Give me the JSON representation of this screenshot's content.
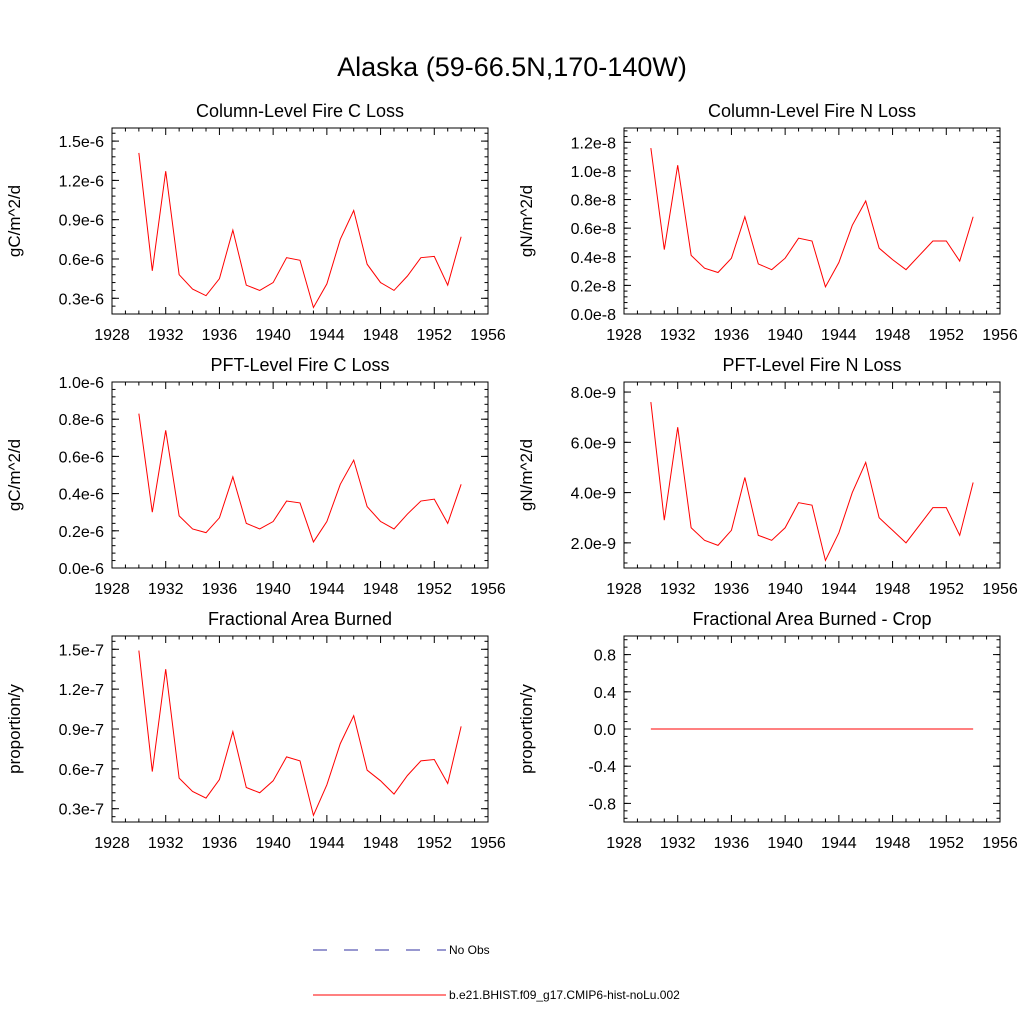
{
  "page": {
    "title": "Alaska (59-66.5N,170-140W)"
  },
  "legend": [
    {
      "label": "No Obs",
      "color": "#3030a0",
      "style": "dashed"
    },
    {
      "label": "b.e21.BHIST.f09_g17.CMIP6-hist-noLu.002",
      "color": "#ff0000",
      "style": "solid"
    }
  ],
  "chart_data": [
    {
      "type": "line",
      "title": "Column-Level Fire C Loss",
      "ylabel": "gC/m^2/d",
      "xlim": [
        1928,
        1956
      ],
      "ylim": [
        1.8e-07,
        1.6e-06
      ],
      "xticks": [
        1928,
        1932,
        1936,
        1940,
        1944,
        1948,
        1952,
        1956
      ],
      "xtick_labels": [
        "1928",
        "1932",
        "1936",
        "1940",
        "1944",
        "1948",
        "1952",
        "1956"
      ],
      "yticks": [
        3e-07,
        6e-07,
        9e-07,
        1.2e-06,
        1.5e-06
      ],
      "ytick_labels": [
        "0.3e-6",
        "0.6e-6",
        "0.9e-6",
        "1.2e-6",
        "1.5e-6"
      ],
      "yminor": 6e-08,
      "x": [
        1930,
        1931,
        1932,
        1933,
        1934,
        1935,
        1936,
        1937,
        1938,
        1939,
        1940,
        1941,
        1942,
        1943,
        1944,
        1945,
        1946,
        1947,
        1948,
        1949,
        1950,
        1951,
        1952,
        1953,
        1954
      ],
      "series": [
        {
          "name": "b.e21.BHIST.f09_g17.CMIP6-hist-noLu.002",
          "color": "#ff0000",
          "values": [
            1.41e-06,
            5.1e-07,
            1.27e-06,
            4.8e-07,
            3.7e-07,
            3.2e-07,
            4.5e-07,
            8.2e-07,
            4e-07,
            3.6e-07,
            4.2e-07,
            6.1e-07,
            5.9e-07,
            2.3e-07,
            4.1e-07,
            7.5e-07,
            9.7e-07,
            5.6e-07,
            4.2e-07,
            3.6e-07,
            4.7e-07,
            6.1e-07,
            6.2e-07,
            4e-07,
            7.7e-07
          ]
        }
      ]
    },
    {
      "type": "line",
      "title": "Column-Level Fire N Loss",
      "ylabel": "gN/m^2/d",
      "xlim": [
        1928,
        1956
      ],
      "ylim": [
        0.0,
        1.3e-08
      ],
      "xticks": [
        1928,
        1932,
        1936,
        1940,
        1944,
        1948,
        1952,
        1956
      ],
      "xtick_labels": [
        "1928",
        "1932",
        "1936",
        "1940",
        "1944",
        "1948",
        "1952",
        "1956"
      ],
      "yticks": [
        0.0,
        2e-09,
        4e-09,
        6e-09,
        8e-09,
        1e-08,
        1.2e-08
      ],
      "ytick_labels": [
        "0.0e-8",
        "0.2e-8",
        "0.4e-8",
        "0.6e-8",
        "0.8e-8",
        "1.0e-8",
        "1.2e-8"
      ],
      "yminor": 4e-10,
      "x": [
        1930,
        1931,
        1932,
        1933,
        1934,
        1935,
        1936,
        1937,
        1938,
        1939,
        1940,
        1941,
        1942,
        1943,
        1944,
        1945,
        1946,
        1947,
        1948,
        1949,
        1950,
        1951,
        1952,
        1953,
        1954
      ],
      "series": [
        {
          "name": "b.e21.BHIST.f09_g17.CMIP6-hist-noLu.002",
          "color": "#ff0000",
          "values": [
            1.16e-08,
            4.5e-09,
            1.04e-08,
            4.1e-09,
            3.2e-09,
            2.9e-09,
            3.9e-09,
            6.8e-09,
            3.5e-09,
            3.1e-09,
            3.9e-09,
            5.3e-09,
            5.1e-09,
            1.9e-09,
            3.6e-09,
            6.2e-09,
            7.9e-09,
            4.6e-09,
            3.8e-09,
            3.1e-09,
            4.1e-09,
            5.1e-09,
            5.1e-09,
            3.7e-09,
            6.8e-09
          ]
        }
      ]
    },
    {
      "type": "line",
      "title": "PFT-Level Fire C Loss",
      "ylabel": "gC/m^2/d",
      "xlim": [
        1928,
        1956
      ],
      "ylim": [
        0.0,
        1e-06
      ],
      "xticks": [
        1928,
        1932,
        1936,
        1940,
        1944,
        1948,
        1952,
        1956
      ],
      "xtick_labels": [
        "1928",
        "1932",
        "1936",
        "1940",
        "1944",
        "1948",
        "1952",
        "1956"
      ],
      "yticks": [
        0.0,
        2e-07,
        4e-07,
        6e-07,
        8e-07,
        1e-06
      ],
      "ytick_labels": [
        "0.0e-6",
        "0.2e-6",
        "0.4e-6",
        "0.6e-6",
        "0.8e-6",
        "1.0e-6"
      ],
      "yminor": 4e-08,
      "x": [
        1930,
        1931,
        1932,
        1933,
        1934,
        1935,
        1936,
        1937,
        1938,
        1939,
        1940,
        1941,
        1942,
        1943,
        1944,
        1945,
        1946,
        1947,
        1948,
        1949,
        1950,
        1951,
        1952,
        1953,
        1954
      ],
      "series": [
        {
          "name": "b.e21.BHIST.f09_g17.CMIP6-hist-noLu.002",
          "color": "#ff0000",
          "values": [
            8.3e-07,
            3e-07,
            7.4e-07,
            2.8e-07,
            2.1e-07,
            1.9e-07,
            2.7e-07,
            4.9e-07,
            2.4e-07,
            2.1e-07,
            2.5e-07,
            3.6e-07,
            3.5e-07,
            1.4e-07,
            2.5e-07,
            4.5e-07,
            5.8e-07,
            3.3e-07,
            2.5e-07,
            2.1e-07,
            2.9e-07,
            3.6e-07,
            3.7e-07,
            2.4e-07,
            4.5e-07
          ]
        }
      ]
    },
    {
      "type": "line",
      "title": "PFT-Level Fire N Loss",
      "ylabel": "gN/m^2/d",
      "xlim": [
        1928,
        1956
      ],
      "ylim": [
        1e-09,
        8.4e-09
      ],
      "xticks": [
        1928,
        1932,
        1936,
        1940,
        1944,
        1948,
        1952,
        1956
      ],
      "xtick_labels": [
        "1928",
        "1932",
        "1936",
        "1940",
        "1944",
        "1948",
        "1952",
        "1956"
      ],
      "yticks": [
        2e-09,
        4e-09,
        6e-09,
        8e-09
      ],
      "ytick_labels": [
        "2.0e-9",
        "4.0e-9",
        "6.0e-9",
        "8.0e-9"
      ],
      "yminor": 4e-10,
      "x": [
        1930,
        1931,
        1932,
        1933,
        1934,
        1935,
        1936,
        1937,
        1938,
        1939,
        1940,
        1941,
        1942,
        1943,
        1944,
        1945,
        1946,
        1947,
        1948,
        1949,
        1950,
        1951,
        1952,
        1953,
        1954
      ],
      "series": [
        {
          "name": "b.e21.BHIST.f09_g17.CMIP6-hist-noLu.002",
          "color": "#ff0000",
          "values": [
            7.6e-09,
            2.9e-09,
            6.6e-09,
            2.6e-09,
            2.1e-09,
            1.9e-09,
            2.5e-09,
            4.6e-09,
            2.3e-09,
            2.1e-09,
            2.6e-09,
            3.6e-09,
            3.5e-09,
            1.3e-09,
            2.4e-09,
            4e-09,
            5.2e-09,
            3e-09,
            2.5e-09,
            2e-09,
            2.7e-09,
            3.4e-09,
            3.4e-09,
            2.3e-09,
            4.4e-09
          ]
        }
      ]
    },
    {
      "type": "line",
      "title": "Fractional Area Burned",
      "ylabel": "proportion/y",
      "xlim": [
        1928,
        1956
      ],
      "ylim": [
        2e-08,
        1.6e-07
      ],
      "xticks": [
        1928,
        1932,
        1936,
        1940,
        1944,
        1948,
        1952,
        1956
      ],
      "xtick_labels": [
        "1928",
        "1932",
        "1936",
        "1940",
        "1944",
        "1948",
        "1952",
        "1956"
      ],
      "yticks": [
        3e-08,
        6e-08,
        9e-08,
        1.2e-07,
        1.5e-07
      ],
      "ytick_labels": [
        "0.3e-7",
        "0.6e-7",
        "0.9e-7",
        "1.2e-7",
        "1.5e-7"
      ],
      "yminor": 6e-09,
      "x": [
        1930,
        1931,
        1932,
        1933,
        1934,
        1935,
        1936,
        1937,
        1938,
        1939,
        1940,
        1941,
        1942,
        1943,
        1944,
        1945,
        1946,
        1947,
        1948,
        1949,
        1950,
        1951,
        1952,
        1953,
        1954
      ],
      "series": [
        {
          "name": "b.e21.BHIST.f09_g17.CMIP6-hist-noLu.002",
          "color": "#ff0000",
          "values": [
            1.49e-07,
            5.8e-08,
            1.35e-07,
            5.3e-08,
            4.3e-08,
            3.8e-08,
            5.2e-08,
            8.8e-08,
            4.6e-08,
            4.2e-08,
            5.1e-08,
            6.9e-08,
            6.6e-08,
            2.5e-08,
            4.8e-08,
            7.9e-08,
            1e-07,
            5.9e-08,
            5.1e-08,
            4.1e-08,
            5.5e-08,
            6.6e-08,
            6.7e-08,
            4.9e-08,
            9.2e-08
          ]
        }
      ]
    },
    {
      "type": "line",
      "title": "Fractional Area Burned - Crop",
      "ylabel": "proportion/y",
      "xlim": [
        1928,
        1956
      ],
      "ylim": [
        -1.0,
        1.0
      ],
      "xticks": [
        1928,
        1932,
        1936,
        1940,
        1944,
        1948,
        1952,
        1956
      ],
      "xtick_labels": [
        "1928",
        "1932",
        "1936",
        "1940",
        "1944",
        "1948",
        "1952",
        "1956"
      ],
      "yticks": [
        -0.8,
        -0.4,
        0.0,
        0.4,
        0.8
      ],
      "ytick_labels": [
        "-0.8",
        "-0.4",
        "0.0",
        "0.4",
        "0.8"
      ],
      "yminor": 0.08,
      "x": [
        1930,
        1931,
        1932,
        1933,
        1934,
        1935,
        1936,
        1937,
        1938,
        1939,
        1940,
        1941,
        1942,
        1943,
        1944,
        1945,
        1946,
        1947,
        1948,
        1949,
        1950,
        1951,
        1952,
        1953,
        1954
      ],
      "series": [
        {
          "name": "b.e21.BHIST.f09_g17.CMIP6-hist-noLu.002",
          "color": "#ff0000",
          "values": [
            0,
            0,
            0,
            0,
            0,
            0,
            0,
            0,
            0,
            0,
            0,
            0,
            0,
            0,
            0,
            0,
            0,
            0,
            0,
            0,
            0,
            0,
            0,
            0,
            0
          ]
        }
      ]
    }
  ]
}
